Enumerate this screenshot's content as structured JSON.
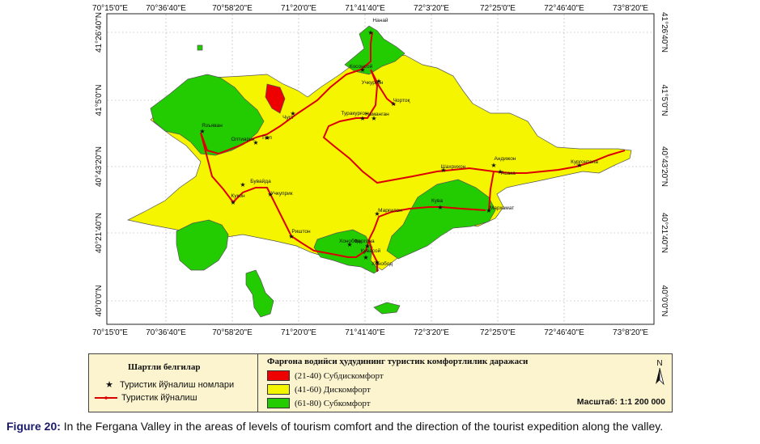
{
  "map": {
    "top_longitudes": [
      "70°15'0\"E",
      "70°36'40\"E",
      "70°58'20\"E",
      "71°20'0\"E",
      "71°41'40\"E",
      "72°3'20\"E",
      "72°25'0\"E",
      "72°46'40\"E",
      "73°8'20\"E"
    ],
    "bottom_longitudes": [
      "70°15'0\"E",
      "70°36'40\"E",
      "70°58'20\"E",
      "71°20'0\"E",
      "71°41'40\"E",
      "72°3'20\"E",
      "72°25'0\"E",
      "72°46'40\"E",
      "73°8'20\"E"
    ],
    "latitudes": [
      "41°26'40\"N",
      "41°5'0\"N",
      "40°43'20\"N",
      "40°21'40\"N",
      "40°0'0\"N"
    ],
    "towns": [
      {
        "name": "Наманган"
      },
      {
        "name": "Чуст"
      },
      {
        "name": "Поп"
      },
      {
        "name": "Кукон"
      },
      {
        "name": "Бувайда"
      },
      {
        "name": "Учкуприк"
      },
      {
        "name": "Фаргона"
      },
      {
        "name": "Олтиарик"
      },
      {
        "name": "Риштон"
      },
      {
        "name": "Андижон"
      },
      {
        "name": "Асака"
      },
      {
        "name": "Кургонтепа"
      },
      {
        "name": "Шахрихон"
      },
      {
        "name": "Марғилон"
      },
      {
        "name": "Кува"
      },
      {
        "name": "Учкурғон"
      },
      {
        "name": "Косонсой"
      },
      {
        "name": "Чортоқ"
      },
      {
        "name": "Туракурғон"
      },
      {
        "name": "Хонобод"
      },
      {
        "name": "Қувасой"
      },
      {
        "name": "Язъяван"
      },
      {
        "name": "Мархамат"
      },
      {
        "name": "Хонобод"
      },
      {
        "name": "Нанай"
      }
    ],
    "colors": {
      "subdiscomfort": "#ee0000",
      "discomfort": "#f5f500",
      "subcomfort": "#22cc00",
      "route": "#dd0000"
    }
  },
  "legend": {
    "left_title": "Шартли белгилар",
    "points_label": "Туристик йўналиш номлари",
    "route_label": "Туристик йўналиш",
    "right_title": "Фарғона водийси ҳудудининг туристик комфортлилик даражаси",
    "classes": [
      {
        "label": "(21-40) Субдискомфорт",
        "color": "#ee0000"
      },
      {
        "label": "(41-60) Дискомфорт",
        "color": "#f5f500"
      },
      {
        "label": "(61-80) Субкомфорт",
        "color": "#22cc00"
      }
    ],
    "north_letter": "N",
    "scale": "Масштаб: 1:1 200 000"
  },
  "caption": {
    "figure_label": "Figure 20:",
    "text": " In the Fergana Valley in the areas of levels of tourism comfort and the direction of the tourist expedition along the valley."
  }
}
